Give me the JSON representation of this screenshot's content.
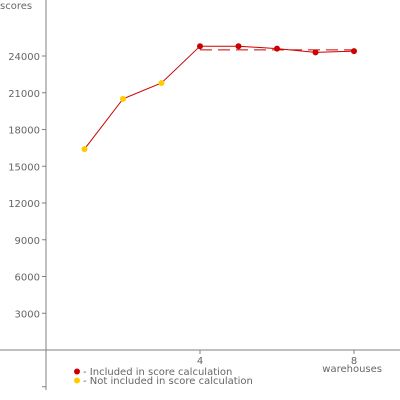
{
  "chart_data": {
    "type": "line",
    "xlabel": "warehouses",
    "ylabel": "scores",
    "xlim": [
      0,
      9
    ],
    "ylim": [
      -3000,
      28500
    ],
    "x_ticks": [
      4,
      8
    ],
    "y_ticks": [
      3000,
      6000,
      9000,
      12000,
      15000,
      18000,
      21000,
      24000
    ],
    "series": [
      {
        "x": [
          1,
          2,
          3,
          4,
          5,
          6,
          7,
          8
        ],
        "y": [
          16400,
          20500,
          21800,
          24800,
          24800,
          24600,
          24300,
          24400
        ],
        "included": [
          false,
          false,
          false,
          true,
          true,
          true,
          true,
          true
        ]
      }
    ],
    "score_line": {
      "x_start": 4,
      "x_end": 8,
      "value": 24500
    },
    "colors": {
      "included": "#cc0000",
      "not_included": "#ffcc00",
      "line": "#cc0000",
      "axis": "#808080"
    },
    "legend": [
      {
        "label": "- Included in score calculation",
        "color": "#cc0000"
      },
      {
        "label": "- Not included in score calculation",
        "color": "#ffcc00"
      }
    ]
  }
}
